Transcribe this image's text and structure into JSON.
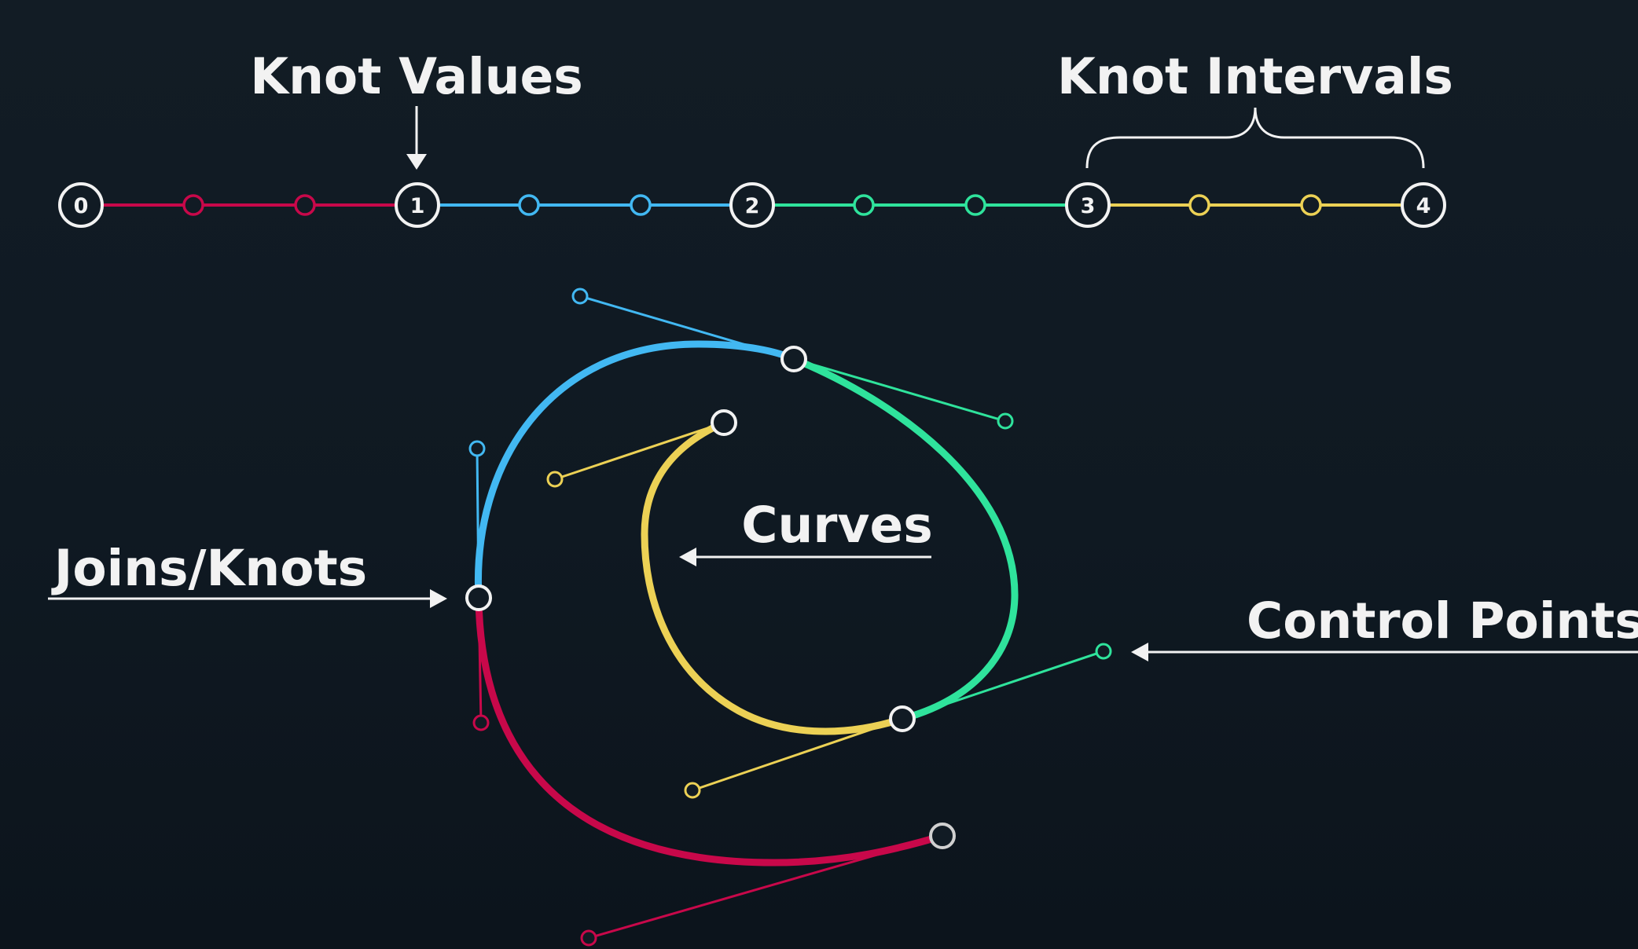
{
  "colors": {
    "background": "#101a23",
    "white": "#f2f2f2",
    "red": "#c8084a",
    "blue": "#42b8f2",
    "green": "#2fe39c",
    "yellow": "#ecd155"
  },
  "labels": {
    "knot_values": "Knot Values",
    "knot_intervals": "Knot Intervals",
    "curves": "Curves",
    "joins_knots": "Joins/Knots",
    "control_points": "Control Points"
  },
  "knot_line": {
    "knots": [
      "0",
      "1",
      "2",
      "3",
      "4"
    ],
    "interval_colors": [
      "red",
      "blue",
      "green",
      "yellow"
    ]
  },
  "curve": {
    "segments": [
      "red",
      "blue",
      "green",
      "yellow"
    ]
  }
}
